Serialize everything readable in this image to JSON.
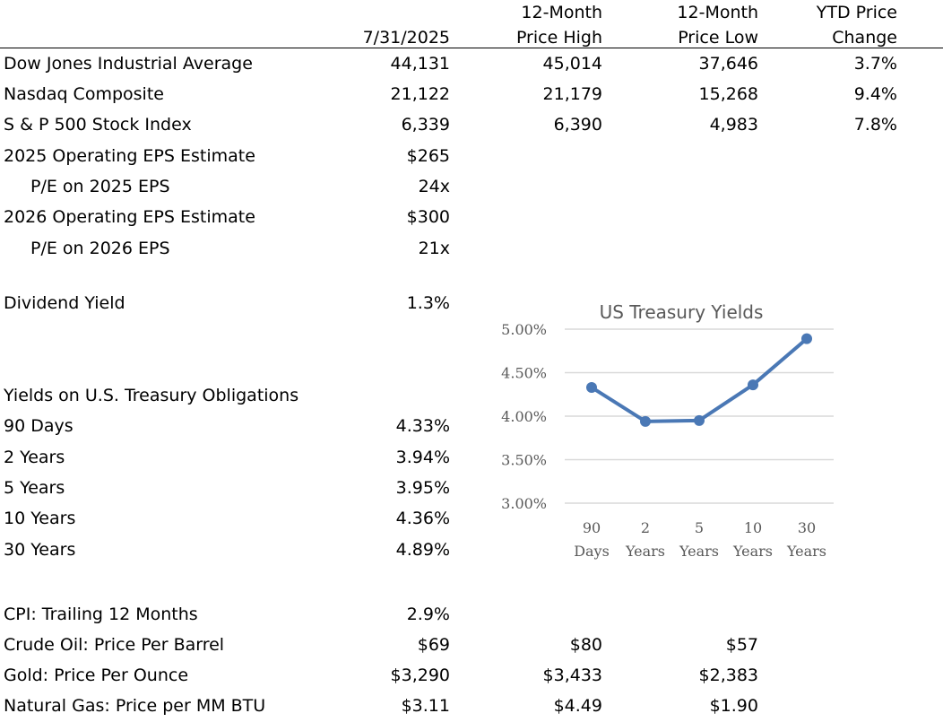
{
  "header": {
    "date": "7/31/2025",
    "high_line1": "12-Month",
    "high_line2": "Price High",
    "low_line1": "12-Month",
    "low_line2": "Price Low",
    "ytd_line1": "YTD Price",
    "ytd_line2": "Change"
  },
  "indexes": [
    {
      "label": "Dow Jones Industrial Average",
      "value": "44,131",
      "high": "45,014",
      "low": "37,646",
      "ytd": "3.7%"
    },
    {
      "label": "Nasdaq Composite",
      "value": "21,122",
      "high": "21,179",
      "low": "15,268",
      "ytd": "9.4%"
    },
    {
      "label": "S & P 500 Stock Index",
      "value": "6,339",
      "high": "6,390",
      "low": "4,983",
      "ytd": "7.8%"
    }
  ],
  "eps": [
    {
      "label": "2025 Operating EPS Estimate",
      "value": "$265"
    },
    {
      "label": "P/E on 2025 EPS",
      "value": "24x"
    },
    {
      "label": "2026 Operating EPS Estimate",
      "value": "$300"
    },
    {
      "label": "P/E on 2026 EPS",
      "value": "21x"
    }
  ],
  "dividend": {
    "label": "Dividend Yield",
    "value": "1.3%"
  },
  "treasury": {
    "heading": "Yields on U.S. Treasury Obligations",
    "rows": [
      {
        "label": "90 Days",
        "value": "4.33%"
      },
      {
        "label": "2 Years",
        "value": "3.94%"
      },
      {
        "label": "5 Years",
        "value": "3.95%"
      },
      {
        "label": "10 Years",
        "value": "4.36%"
      },
      {
        "label": "30 Years",
        "value": "4.89%"
      }
    ]
  },
  "commodities": [
    {
      "label": "CPI: Trailing 12 Months",
      "value": "2.9%",
      "high": "",
      "low": ""
    },
    {
      "label": "Crude Oil:  Price Per Barrel",
      "value": "$69",
      "high": "$80",
      "low": "$57"
    },
    {
      "label": "Gold:  Price Per Ounce",
      "value": "$3,290",
      "high": "$3,433",
      "low": "$2,383"
    },
    {
      "label": "Natural Gas: Price per MM BTU",
      "value": "$3.11",
      "high": "$4.49",
      "low": "$1.90"
    }
  ],
  "chart_data": {
    "type": "line",
    "title": "US Treasury Yields",
    "categories": [
      [
        "90",
        "Days"
      ],
      [
        "2",
        "Years"
      ],
      [
        "5",
        "Years"
      ],
      [
        "10",
        "Years"
      ],
      [
        "30",
        "Years"
      ]
    ],
    "series": [
      {
        "values": [
          4.33,
          3.94,
          3.95,
          4.36,
          4.89
        ]
      }
    ],
    "ylim": [
      3.0,
      5.0
    ],
    "yticks": [
      "3.00%",
      "3.50%",
      "4.00%",
      "4.50%",
      "5.00%"
    ],
    "ytick_values": [
      3.0,
      3.5,
      4.0,
      4.5,
      5.0
    ],
    "grid": true,
    "line_color": "#4a78b5",
    "grid_color": "#d9d9d9"
  }
}
